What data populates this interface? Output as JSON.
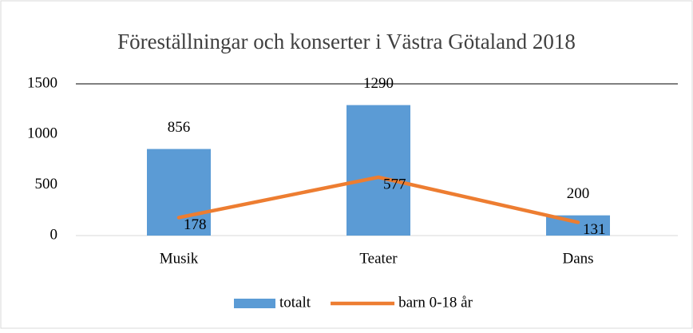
{
  "chart_data": {
    "type": "bar",
    "title": "Föreställningar och konserter i Västra Götaland 2018",
    "categories": [
      "Musik",
      "Teater",
      "Dans"
    ],
    "series": [
      {
        "name": "totalt",
        "type": "bar",
        "color": "#5b9bd5",
        "values": [
          856,
          1290,
          200
        ]
      },
      {
        "name": "barn 0-18 år",
        "type": "line",
        "color": "#ed7d31",
        "values": [
          178,
          577,
          131
        ]
      }
    ],
    "ylim": [
      0,
      1500
    ],
    "yticks": [
      0,
      500,
      1000,
      1500
    ],
    "grid": false,
    "legend": "bottom"
  }
}
